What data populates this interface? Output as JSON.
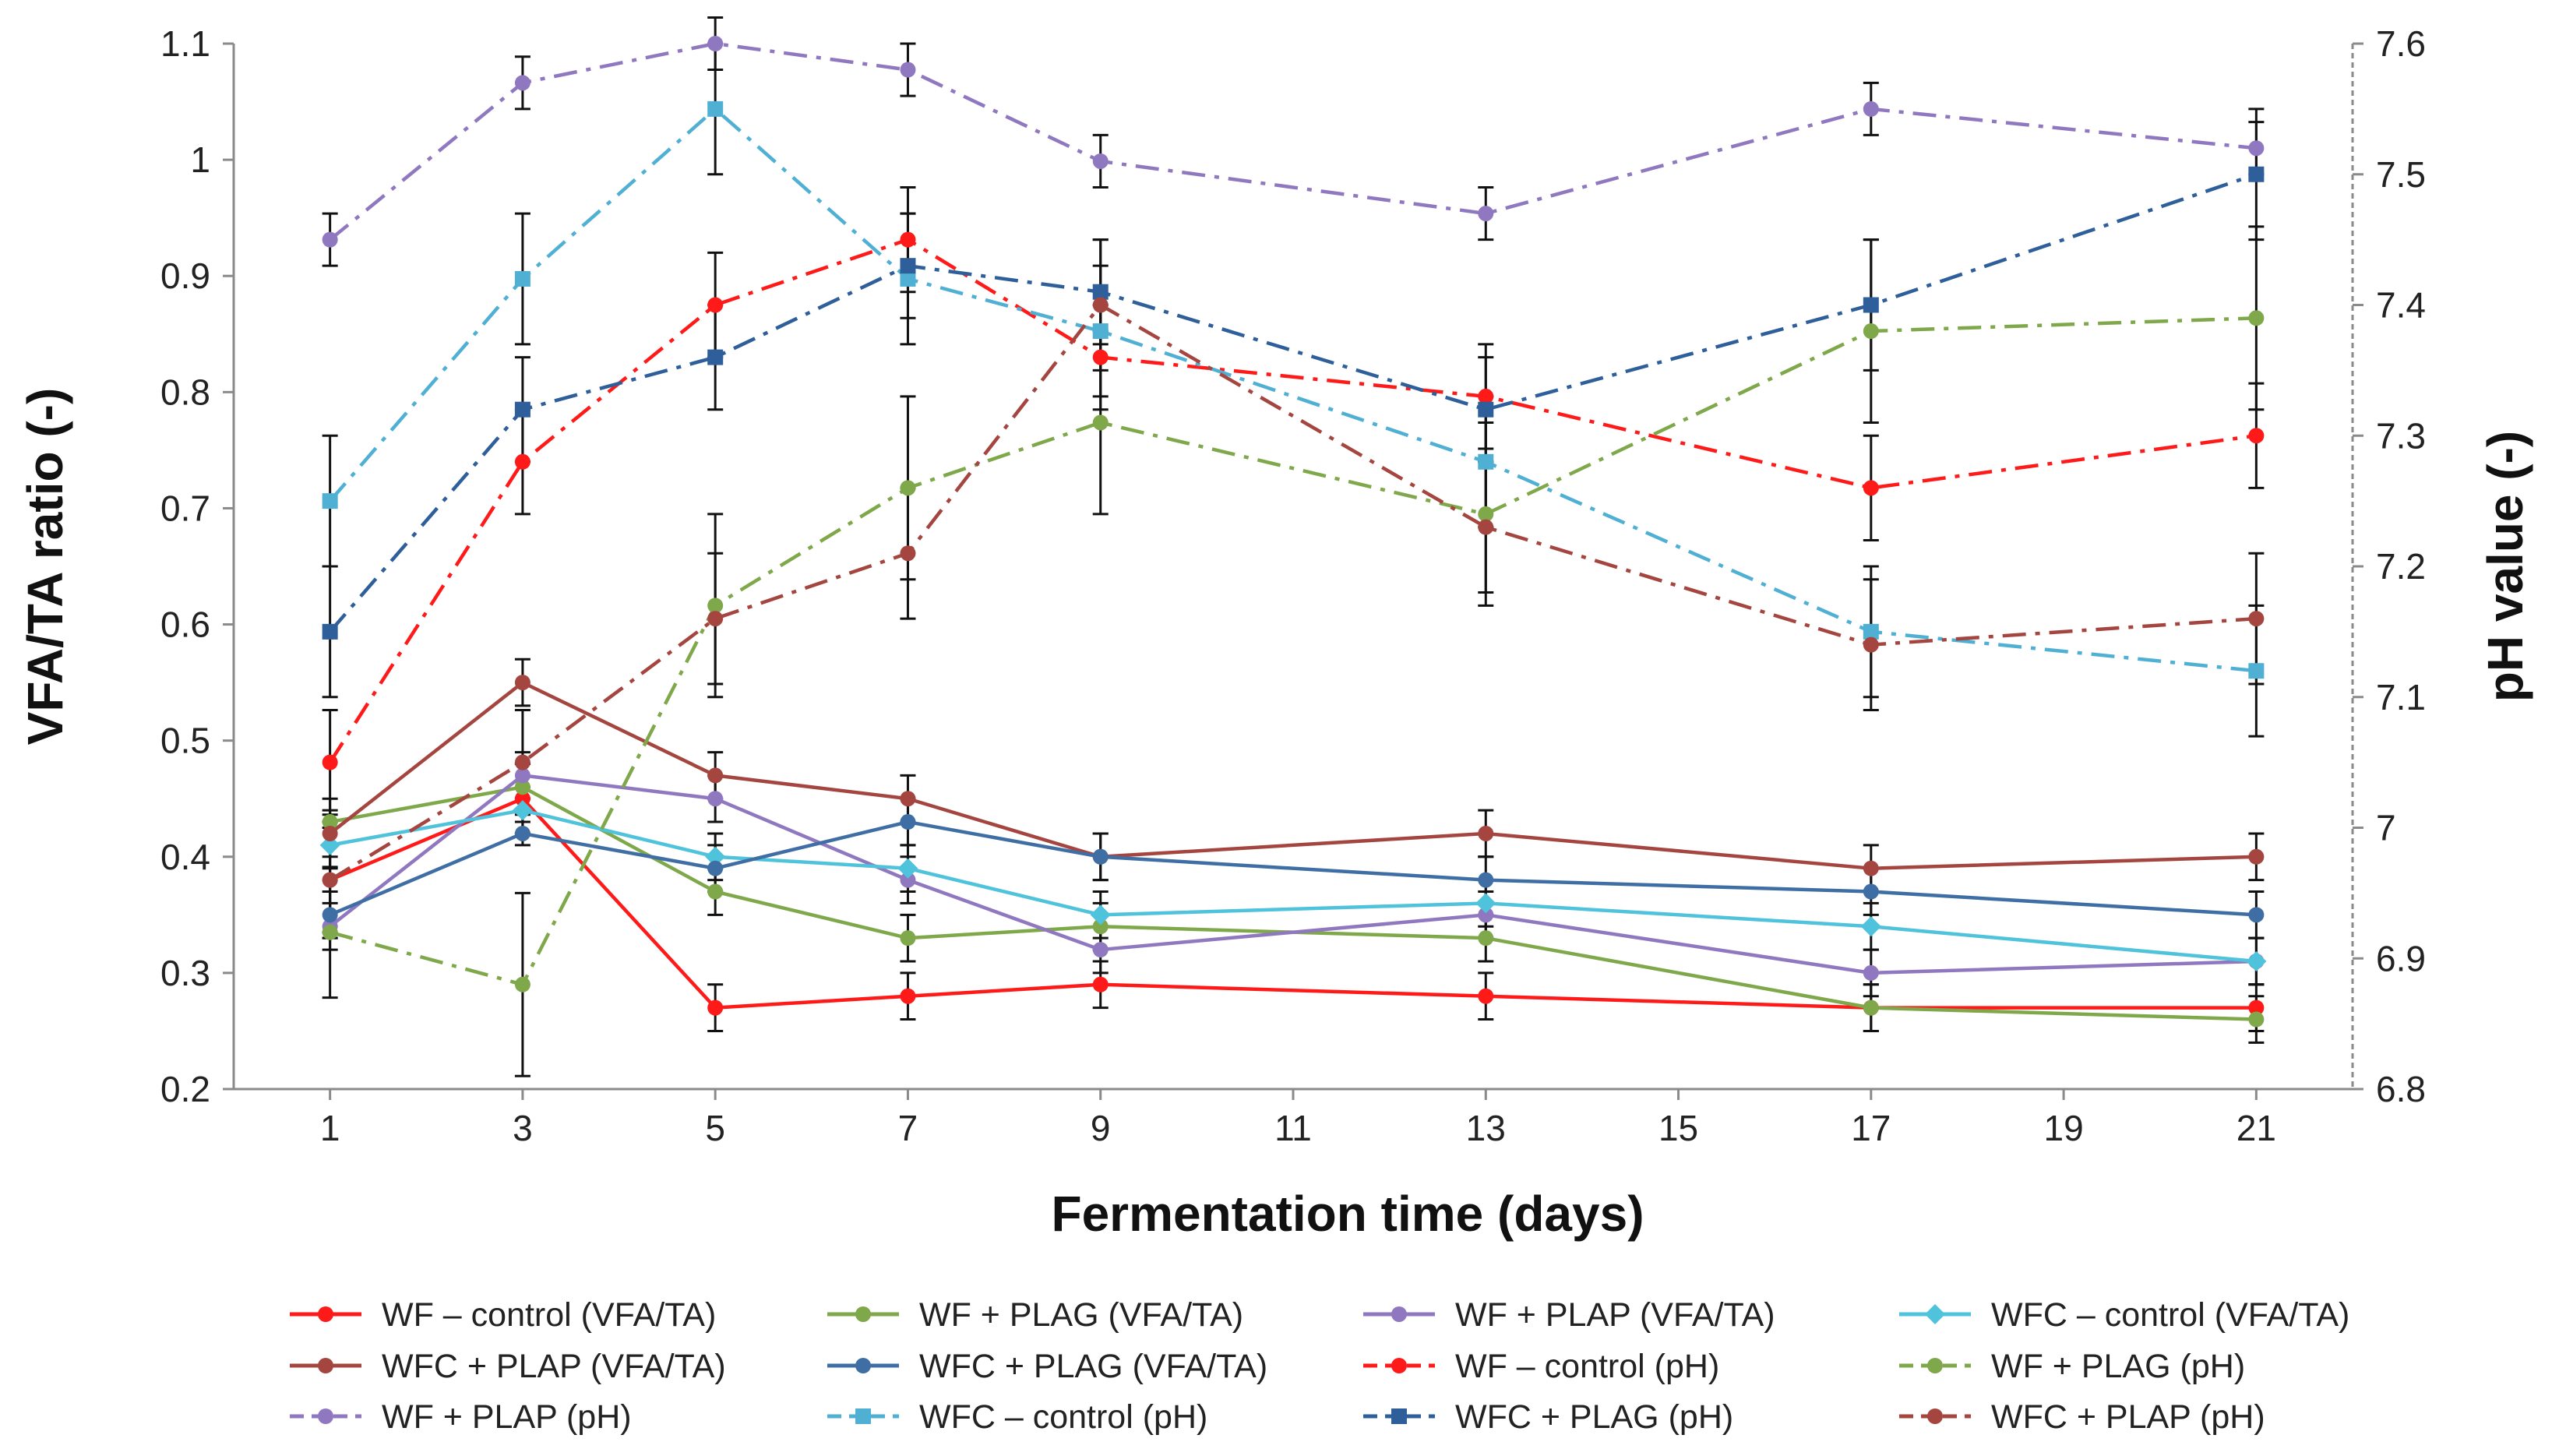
{
  "chart_data": {
    "type": "line",
    "title": "",
    "xlabel": "Fermentation time (days)",
    "ylabel": "VFA/TA ratio (-)",
    "y2label": "pH value (-)",
    "xlim": [
      0,
      22
    ],
    "ylim": [
      0.2,
      1.1
    ],
    "y2lim": [
      6.8,
      7.6
    ],
    "x_ticks": [
      "1",
      "3",
      "5",
      "7",
      "9",
      "11",
      "13",
      "15",
      "17",
      "19",
      "21"
    ],
    "y_ticks": [
      "0.2",
      "0.3",
      "0.4",
      "0.5",
      "0.6",
      "0.7",
      "0.8",
      "0.9",
      "1",
      "1.1"
    ],
    "y2_ticks": [
      "6.8",
      "6.9",
      "7",
      "7.1",
      "7.2",
      "7.3",
      "7.4",
      "7.5",
      "7.6"
    ],
    "x": [
      1,
      3,
      5,
      7,
      9,
      13,
      17,
      21
    ],
    "series": [
      {
        "name": "WF – control (VFA/TA)",
        "axis": "left",
        "color": "#ff1a1a",
        "dash": "solid",
        "marker": "circle",
        "values": [
          0.38,
          0.45,
          0.27,
          0.28,
          0.29,
          0.28,
          0.27,
          0.27
        ],
        "errors": [
          0.05,
          0.03,
          0.02,
          0.02,
          0.02,
          0.02,
          0.02,
          0.02
        ]
      },
      {
        "name": "WF + PLAG (VFA/TA)",
        "axis": "left",
        "color": "#7fa84a",
        "dash": "solid",
        "marker": "circle",
        "values": [
          0.43,
          0.46,
          0.37,
          0.33,
          0.34,
          0.33,
          0.27,
          0.26
        ],
        "errors": [
          0.02,
          0.02,
          0.02,
          0.02,
          0.02,
          0.02,
          0.02,
          0.02
        ]
      },
      {
        "name": "WF + PLAP (VFA/TA)",
        "axis": "left",
        "color": "#8f78bf",
        "dash": "solid",
        "marker": "circle",
        "values": [
          0.34,
          0.47,
          0.45,
          0.38,
          0.32,
          0.35,
          0.3,
          0.31
        ],
        "errors": [
          0.02,
          0.02,
          0.02,
          0.02,
          0.02,
          0.02,
          0.02,
          0.02
        ]
      },
      {
        "name": "WFC – control (VFA/TA)",
        "axis": "left",
        "color": "#4fc2dc",
        "dash": "solid",
        "marker": "diamond",
        "values": [
          0.41,
          0.44,
          0.4,
          0.39,
          0.35,
          0.36,
          0.34,
          0.31
        ],
        "errors": [
          0.02,
          0.02,
          0.02,
          0.02,
          0.02,
          0.02,
          0.02,
          0.02
        ]
      },
      {
        "name": "WFC + PLAP (VFA/TA)",
        "axis": "left",
        "color": "#a5453f",
        "dash": "solid",
        "marker": "circle",
        "values": [
          0.42,
          0.55,
          0.47,
          0.45,
          0.4,
          0.42,
          0.39,
          0.4
        ],
        "errors": [
          0.02,
          0.02,
          0.02,
          0.02,
          0.02,
          0.02,
          0.02,
          0.02
        ]
      },
      {
        "name": "WFC + PLAG (VFA/TA)",
        "axis": "left",
        "color": "#3f6ea5",
        "dash": "solid",
        "marker": "circle",
        "values": [
          0.35,
          0.42,
          0.39,
          0.43,
          0.4,
          0.38,
          0.37,
          0.35
        ],
        "errors": [
          0.02,
          0.01,
          0.02,
          0.02,
          0.02,
          0.02,
          0.02,
          0.02
        ]
      },
      {
        "name": "WF – control (pH)",
        "axis": "right",
        "color": "#ff1a1a",
        "dash": "dashdot",
        "marker": "circle",
        "values": [
          7.05,
          7.28,
          7.4,
          7.45,
          7.36,
          7.33,
          7.26,
          7.3
        ],
        "errors": [
          0.04,
          0.04,
          0.04,
          0.04,
          0.04,
          0.04,
          0.04,
          0.04
        ]
      },
      {
        "name": "WF + PLAG (pH)",
        "axis": "right",
        "color": "#7fa84a",
        "dash": "dashdot",
        "marker": "circle",
        "values": [
          6.92,
          6.88,
          7.17,
          7.26,
          7.31,
          7.24,
          7.38,
          7.39
        ],
        "errors": [
          0.05,
          0.07,
          0.07,
          0.07,
          0.07,
          0.07,
          0.07,
          0.07
        ]
      },
      {
        "name": "WF + PLAP (pH)",
        "axis": "right",
        "color": "#8f78bf",
        "dash": "dashdot",
        "marker": "circle",
        "values": [
          7.45,
          7.57,
          7.6,
          7.58,
          7.51,
          7.47,
          7.55,
          7.52
        ],
        "errors": [
          0.02,
          0.02,
          0.02,
          0.02,
          0.02,
          0.02,
          0.02,
          0.02
        ]
      },
      {
        "name": "WFC – control (pH)",
        "axis": "right",
        "color": "#4fb0d4",
        "dash": "dashdot",
        "marker": "square",
        "values": [
          7.25,
          7.42,
          7.55,
          7.42,
          7.38,
          7.28,
          7.15,
          7.12
        ],
        "errors": [
          0.05,
          0.05,
          0.05,
          0.05,
          0.05,
          0.05,
          0.05,
          0.05
        ]
      },
      {
        "name": "WFC + PLAG (pH)",
        "axis": "right",
        "color": "#2e5f9a",
        "dash": "dashdot",
        "marker": "square",
        "values": [
          7.15,
          7.32,
          7.36,
          7.43,
          7.41,
          7.32,
          7.4,
          7.5
        ],
        "errors": [
          0.05,
          0.04,
          0.04,
          0.04,
          0.04,
          0.04,
          0.05,
          0.05
        ]
      },
      {
        "name": "WFC + PLAP (pH)",
        "axis": "right",
        "color": "#a5453f",
        "dash": "dashdot",
        "marker": "circle",
        "values": [
          6.96,
          7.05,
          7.16,
          7.21,
          7.4,
          7.23,
          7.14,
          7.16
        ],
        "errors": [
          0.04,
          0.04,
          0.05,
          0.05,
          0.05,
          0.05,
          0.05,
          0.05
        ]
      }
    ],
    "legend_position": "bottom",
    "grid": false
  }
}
